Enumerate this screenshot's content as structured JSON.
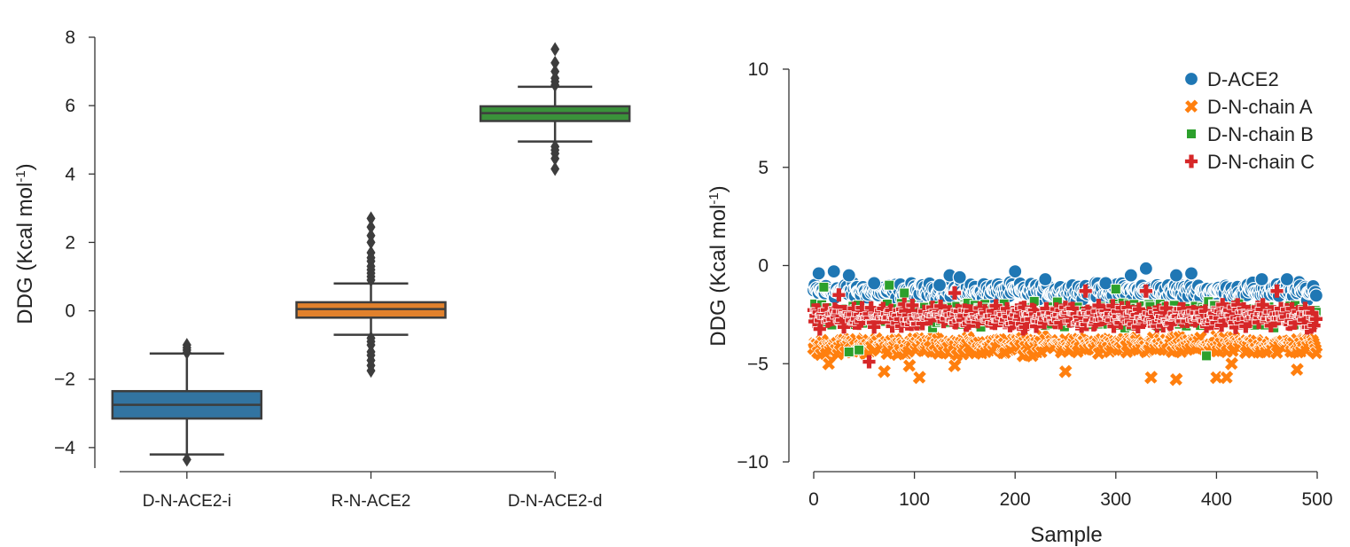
{
  "chart_data": [
    {
      "type": "box",
      "ylabel": "DDG (Kcal mol",
      "ylabel_sup": "-1",
      "ylabel_close": ")",
      "ylim": [
        -4.6,
        8
      ],
      "yticks": [
        -4,
        -2,
        0,
        2,
        4,
        6,
        8
      ],
      "ytick_labels": [
        "−4",
        "−2",
        "0",
        "2",
        "4",
        "6",
        "8"
      ],
      "categories": [
        "D-N-ACE2-i",
        "R-N-ACE2",
        "D-N-ACE2-d"
      ],
      "colors": [
        "#3274a1",
        "#e1812c",
        "#3a923a"
      ],
      "boxes": [
        {
          "name": "D-N-ACE2-i",
          "q1": -3.15,
          "median": -2.75,
          "q3": -2.35,
          "whisker_low": -4.2,
          "whisker_high": -1.25,
          "outliers": [
            -4.35,
            -1.22,
            -1.15,
            -1.08,
            -1.0
          ]
        },
        {
          "name": "R-N-ACE2",
          "q1": -0.2,
          "median": 0.05,
          "q3": 0.25,
          "whisker_low": -0.7,
          "whisker_high": 0.8,
          "outliers": [
            -1.75,
            -1.6,
            -1.45,
            -1.3,
            -1.2,
            -1.0,
            -0.9,
            -0.8,
            0.9,
            1.0,
            1.1,
            1.2,
            1.3,
            1.45,
            1.55,
            1.7,
            2.0,
            2.2,
            2.45,
            2.7
          ]
        },
        {
          "name": "D-N-ACE2-d",
          "q1": 5.55,
          "median": 5.78,
          "q3": 5.98,
          "whisker_low": 4.95,
          "whisker_high": 6.55,
          "outliers": [
            4.15,
            4.45,
            4.6,
            4.7,
            4.8,
            6.6,
            6.7,
            6.8,
            7.0,
            7.25,
            7.65
          ]
        }
      ]
    },
    {
      "type": "scatter",
      "xlabel": "Sample",
      "ylabel": "DDG (Kcal mol",
      "ylabel_sup": "-1",
      "ylabel_close": ")",
      "xlim": [
        0,
        500
      ],
      "ylim": [
        -10,
        10
      ],
      "xticks": [
        0,
        100,
        200,
        300,
        400,
        500
      ],
      "yticks": [
        -10,
        -5,
        0,
        5,
        10
      ],
      "ytick_labels": [
        "−10",
        "−5",
        "0",
        "5",
        "10"
      ],
      "n_samples": 500,
      "series": [
        {
          "name": "D-ACE2",
          "color": "#1f77b4",
          "marker": "circle",
          "mean": -1.3,
          "spread": 0.55,
          "highlights": [
            [
              5,
              -0.4
            ],
            [
              20,
              -0.3
            ],
            [
              35,
              -0.5
            ],
            [
              60,
              -0.9
            ],
            [
              125,
              -1.0
            ],
            [
              135,
              -0.5
            ],
            [
              145,
              -0.6
            ],
            [
              200,
              -0.3
            ],
            [
              230,
              -0.7
            ],
            [
              290,
              -0.9
            ],
            [
              315,
              -0.5
            ],
            [
              330,
              -0.15
            ],
            [
              360,
              -0.5
            ],
            [
              375,
              -0.4
            ],
            [
              445,
              -0.7
            ],
            [
              470,
              -0.7
            ]
          ]
        },
        {
          "name": "D-N-chain A",
          "color": "#ff7f0e",
          "marker": "x",
          "mean": -4.1,
          "spread": 0.6,
          "highlights": [
            [
              15,
              -5.0
            ],
            [
              70,
              -5.4
            ],
            [
              95,
              -5.1
            ],
            [
              105,
              -5.7
            ],
            [
              140,
              -5.1
            ],
            [
              250,
              -5.4
            ],
            [
              335,
              -5.7
            ],
            [
              360,
              -5.8
            ],
            [
              400,
              -5.7
            ],
            [
              410,
              -5.7
            ],
            [
              415,
              -5.0
            ],
            [
              480,
              -5.3
            ]
          ]
        },
        {
          "name": "D-N-chain B",
          "color": "#2ca02c",
          "marker": "square",
          "mean": -2.5,
          "spread": 0.8,
          "highlights": [
            [
              10,
              -1.1
            ],
            [
              75,
              -1.0
            ],
            [
              90,
              -1.4
            ],
            [
              300,
              -1.2
            ],
            [
              390,
              -4.6
            ],
            [
              35,
              -4.4
            ],
            [
              45,
              -4.3
            ]
          ]
        },
        {
          "name": "D-N-chain C",
          "color": "#d62728",
          "marker": "plus",
          "mean": -2.6,
          "spread": 0.75,
          "highlights": [
            [
              55,
              -4.9
            ],
            [
              25,
              -1.5
            ],
            [
              140,
              -1.4
            ],
            [
              270,
              -1.3
            ],
            [
              330,
              -1.3
            ],
            [
              460,
              -1.3
            ]
          ]
        }
      ]
    }
  ]
}
